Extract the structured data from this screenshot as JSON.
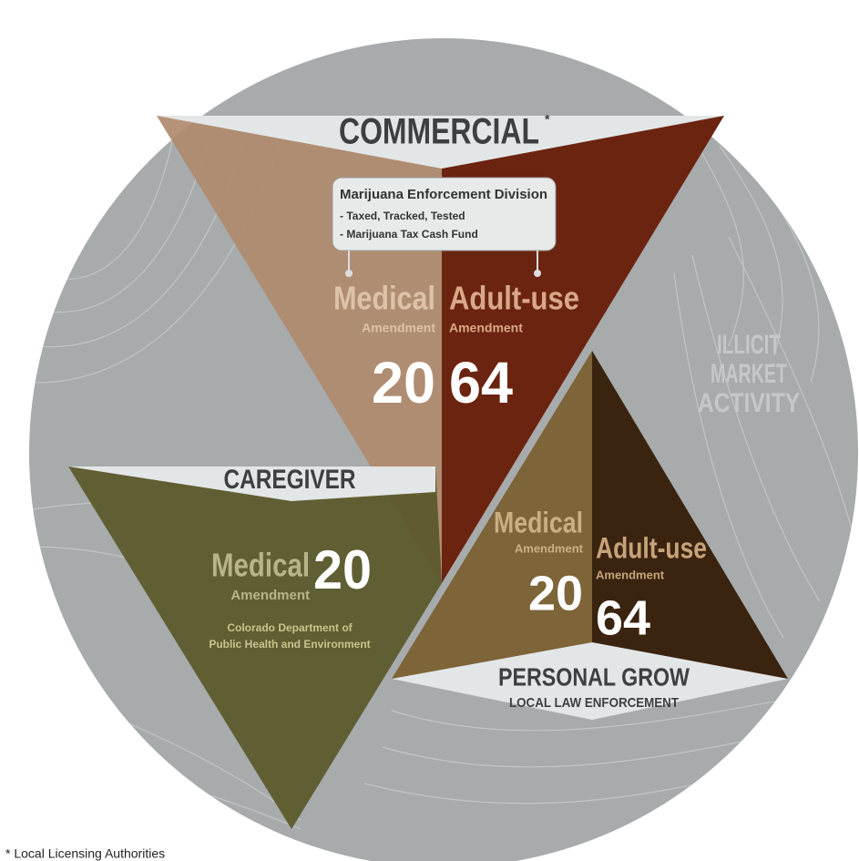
{
  "commercial": {
    "title": "COMMERCIAL",
    "marker": "*",
    "box": {
      "title": "Marijuana Enforcement Division",
      "items": [
        "- Taxed, Tracked, Tested",
        "- Marijuana Tax Cash Fund"
      ]
    },
    "medical": {
      "label": "Medical",
      "sub": "Amendment",
      "number": "20"
    },
    "adult": {
      "label": "Adult-use",
      "sub": "Amendment",
      "number": "64"
    }
  },
  "caregiver": {
    "title": "CAREGIVER",
    "medical": {
      "label": "Medical",
      "sub": "Amendment",
      "number": "20"
    },
    "agency": [
      "Colorado Department of",
      "Public Health and Environment"
    ]
  },
  "personal_grow": {
    "title": "PERSONAL GROW",
    "subtitle": "LOCAL LAW ENFORCEMENT",
    "medical": {
      "label": "Medical",
      "sub": "Amendment",
      "number": "20"
    },
    "adult": {
      "label": "Adult-use",
      "sub": "Amendment",
      "number": "64"
    }
  },
  "illicit": [
    "ILLICIT",
    "MARKET",
    "ACTIVITY"
  ],
  "footnote": "* Local Licensing Authorities"
}
